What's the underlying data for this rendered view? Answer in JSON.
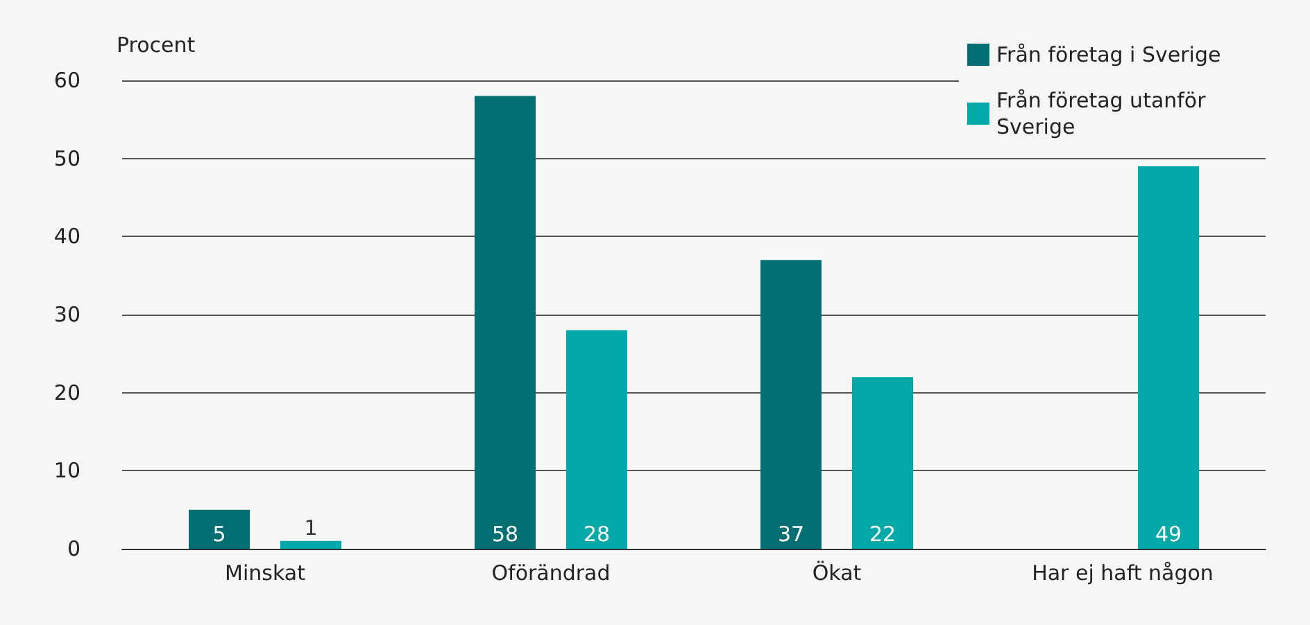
{
  "chart_data": {
    "type": "bar",
    "ylabel": "Procent",
    "categories": [
      "Minskat",
      "Oförändrad",
      "Ökat",
      "Har ej haft någon"
    ],
    "series": [
      {
        "name": "Från företag i Sverige",
        "color": "#006e73",
        "values": [
          5,
          58,
          37,
          null
        ]
      },
      {
        "name": "Från företag utanför Sverige",
        "color": "#00a8a8",
        "values": [
          1,
          28,
          22,
          49
        ]
      }
    ],
    "ylim": [
      0,
      60
    ],
    "yticks": [
      0,
      10,
      20,
      30,
      40,
      50,
      60
    ],
    "grid": "y",
    "legend": "top right",
    "data_labels": true
  }
}
